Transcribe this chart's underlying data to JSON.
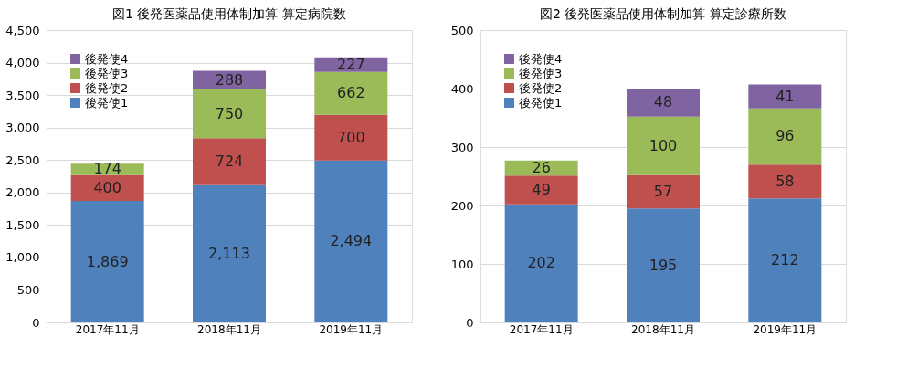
{
  "chart_data": [
    {
      "type": "bar",
      "title": "図1 後発医薬品使用体制加算 算定病院数",
      "categories": [
        "2017年11月",
        "2018年11月",
        "2019年11月"
      ],
      "stacked": true,
      "data_labels": true,
      "grid": "y",
      "legend": "top left",
      "ylim": [
        0,
        4500
      ],
      "yticks": [
        0,
        500,
        {
          "value": 1000,
          "label": "1,000"
        },
        {
          "value": 1500,
          "label": "1,500"
        },
        {
          "value": 2000,
          "label": "2,000"
        },
        {
          "value": 2500,
          "label": "2,500"
        },
        {
          "value": 3000,
          "label": "3,000"
        },
        {
          "value": 3500,
          "label": "3,500"
        },
        {
          "value": 4000,
          "label": "4,000"
        },
        {
          "value": 4500,
          "label": "4,500"
        }
      ],
      "series": [
        {
          "name": "後発使1",
          "color": "#4f81bd",
          "values": [
            1869,
            2113,
            2494
          ],
          "value_labels": [
            "1,869",
            "2,113",
            "2,494"
          ]
        },
        {
          "name": "後発使2",
          "color": "#c0504d",
          "values": [
            400,
            724,
            700
          ]
        },
        {
          "name": "後発使3",
          "color": "#9bbb59",
          "values": [
            174,
            750,
            662
          ]
        },
        {
          "name": "後発使4",
          "color": "#8064a2",
          "values": [
            null,
            288,
            227
          ]
        }
      ]
    },
    {
      "type": "bar",
      "title": "図2 後発医薬品使用体制加算 算定診療所数",
      "categories": [
        "2017年11月",
        "2018年11月",
        "2019年11月"
      ],
      "stacked": true,
      "data_labels": true,
      "grid": "y",
      "legend": "top left",
      "ylim": [
        0,
        500
      ],
      "yticks": [
        0,
        100,
        200,
        300,
        400,
        500
      ],
      "series": [
        {
          "name": "後発使1",
          "color": "#4f81bd",
          "values": [
            202,
            195,
            212
          ]
        },
        {
          "name": "後発使2",
          "color": "#c0504d",
          "values": [
            49,
            57,
            58
          ]
        },
        {
          "name": "後発使3",
          "color": "#9bbb59",
          "values": [
            26,
            100,
            96
          ]
        },
        {
          "name": "後発使4",
          "color": "#8064a2",
          "values": [
            null,
            48,
            41
          ]
        }
      ]
    }
  ]
}
